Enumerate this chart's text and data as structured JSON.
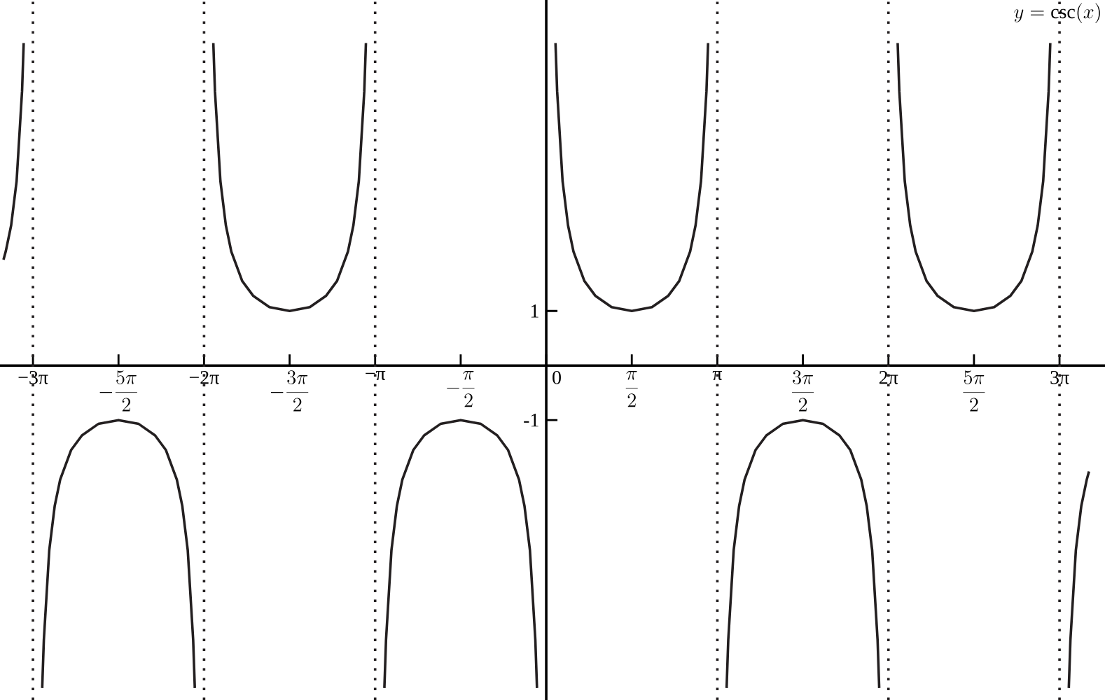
{
  "chart_data": {
    "type": "line",
    "annotations": [
      "y=\\csc(x)"
    ],
    "xlim": [
      -10.03,
      10.26
    ],
    "ylim": [
      -6.13,
      6.7
    ],
    "xticks": [
      {
        "value": -9.42478,
        "label": "−3π"
      },
      {
        "value": -7.85398,
        "label": "-\\frac{5\\pi}{2}"
      },
      {
        "value": -6.28319,
        "label": "−2π"
      },
      {
        "value": -4.71239,
        "label": "-\\frac{3\\pi}{2}"
      },
      {
        "value": -3.14159,
        "label": "−π"
      },
      {
        "value": -1.5708,
        "label": "-\\frac{\\pi}{2}"
      },
      {
        "value": 0,
        "label": "0"
      },
      {
        "value": 1.5708,
        "label": "\\frac{\\pi}{2}"
      },
      {
        "value": 3.14159,
        "label": "π"
      },
      {
        "value": 4.71239,
        "label": "\\frac{3\\pi}{2}"
      },
      {
        "value": 6.28319,
        "label": "2π"
      },
      {
        "value": 7.85398,
        "label": "\\frac{5\\pi}{2}"
      },
      {
        "value": 9.42478,
        "label": "3π"
      }
    ],
    "yticks": [
      1,
      -1
    ],
    "line_style": "solid",
    "ref_lines": [
      {
        "axis": "x",
        "value": -9.425,
        "line_style": "dotted",
        "color": "#231f20"
      },
      {
        "axis": "x",
        "value": -6.283,
        "line_style": "dotted",
        "color": "#231f20"
      },
      {
        "axis": "x",
        "value": -3.142,
        "line_style": "dotted",
        "color": "#231f20"
      },
      {
        "axis": "x",
        "value": 3.142,
        "line_style": "dotted",
        "color": "#231f20"
      },
      {
        "axis": "x",
        "value": 6.283,
        "line_style": "dotted",
        "color": "#231f20"
      },
      {
        "axis": "x",
        "value": 9.425,
        "line_style": "dotted",
        "color": "#231f20"
      }
    ],
    "series": [
      {
        "color": "#231f20",
        "x": [
          -9.966,
          -9.925,
          -9.825,
          -9.725,
          -9.625,
          -9.595,
          -9.425,
          -9.255,
          -9.225,
          -9.125,
          -9.025,
          -8.925,
          -8.725,
          -8.525,
          -8.225,
          -7.854,
          -7.483,
          -7.183,
          -6.983,
          -6.783,
          -6.683,
          -6.583,
          -6.483,
          -6.453,
          -6.283,
          -6.113,
          -6.083,
          -5.983,
          -5.883,
          -5.783,
          -5.583,
          -5.383,
          -5.083,
          -4.712,
          -4.341,
          -4.041,
          -3.841,
          -3.641,
          -3.541,
          -3.441,
          -3.341,
          -3.311,
          -3.142,
          -2.972,
          -2.942,
          -2.842,
          -2.742,
          -2.642,
          -2.442,
          -2.242,
          -1.942,
          -1.571,
          -1.2,
          -0.9,
          -0.7,
          -0.5,
          -0.4,
          -0.3,
          -0.2,
          -0.17,
          0,
          0.17,
          0.2,
          0.3,
          0.4,
          0.5,
          0.7,
          0.9,
          1.2,
          1.571,
          1.942,
          2.242,
          2.442,
          2.642,
          2.742,
          2.842,
          2.942,
          2.972,
          3.142,
          3.312,
          3.342,
          3.442,
          3.542,
          3.642,
          3.842,
          4.042,
          4.342,
          4.713,
          5.084,
          5.384,
          5.584,
          5.784,
          5.884,
          5.984,
          6.084,
          6.114,
          6.283,
          6.453,
          6.483,
          6.583,
          6.683,
          6.783,
          6.983,
          7.183,
          7.483,
          7.854,
          8.225,
          8.525,
          8.725,
          8.925,
          9.025,
          9.125,
          9.225,
          9.255,
          9.425,
          9.595,
          9.625,
          9.725,
          9.825,
          9.925,
          9.966
        ],
        "values": [
          1.94,
          2.09,
          2.57,
          3.38,
          5.03,
          5.91,
          null,
          -5.91,
          -5.03,
          -3.38,
          -2.57,
          -2.09,
          -1.55,
          -1.28,
          -1.07,
          -1,
          -1.07,
          -1.28,
          -1.55,
          -2.09,
          -2.57,
          -3.38,
          -5.03,
          -5.91,
          null,
          5.91,
          5.03,
          3.38,
          2.57,
          2.09,
          1.55,
          1.28,
          1.07,
          1,
          1.07,
          1.28,
          1.55,
          2.09,
          2.57,
          3.38,
          5.03,
          5.91,
          null,
          -5.91,
          -5.03,
          -3.38,
          -2.57,
          -2.09,
          -1.55,
          -1.28,
          -1.07,
          -1,
          -1.07,
          -1.28,
          -1.55,
          -2.09,
          -2.57,
          -3.38,
          -5.03,
          -5.91,
          null,
          5.91,
          5.03,
          3.38,
          2.57,
          2.09,
          1.55,
          1.28,
          1.07,
          1,
          1.07,
          1.28,
          1.55,
          2.09,
          2.57,
          3.38,
          5.03,
          5.91,
          null,
          -5.91,
          -5.03,
          -3.38,
          -2.57,
          -2.09,
          -1.55,
          -1.28,
          -1.07,
          -1,
          -1.07,
          -1.28,
          -1.55,
          -2.09,
          -2.57,
          -3.38,
          -5.03,
          -5.91,
          null,
          5.91,
          5.03,
          3.38,
          2.57,
          2.09,
          1.55,
          1.28,
          1.07,
          1,
          1.07,
          1.28,
          1.55,
          2.09,
          2.57,
          3.38,
          5.03,
          5.91,
          null,
          -5.91,
          -5.03,
          -3.38,
          -2.57,
          -2.09,
          -1.94
        ]
      }
    ]
  }
}
